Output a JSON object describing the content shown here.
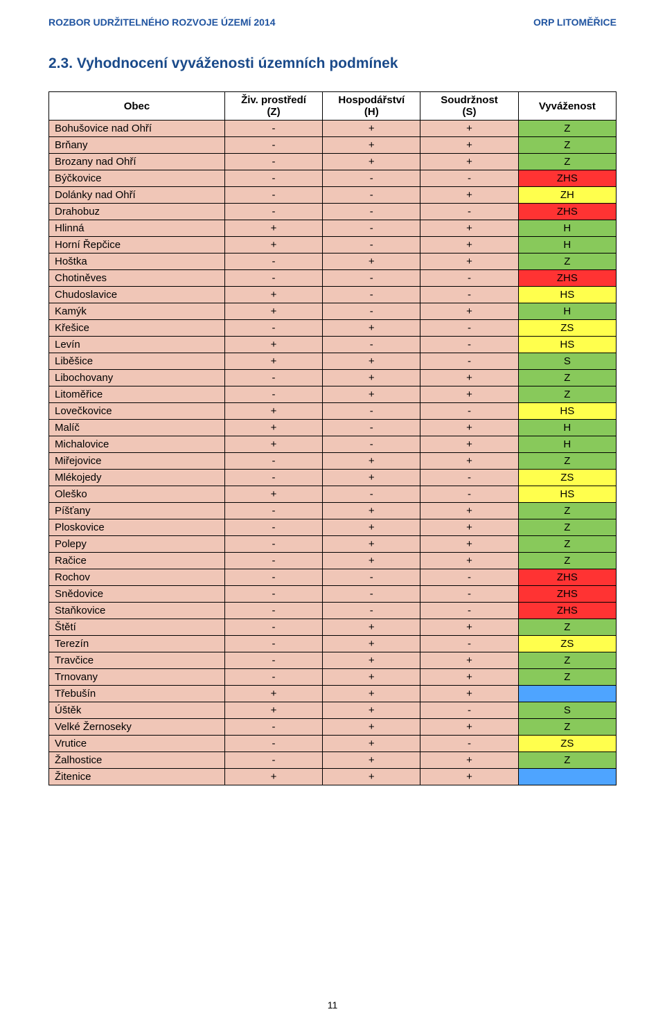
{
  "header": {
    "left": "ROZBOR UDRŽITELNÉHO ROZVOJE ÚZEMÍ 2014",
    "right": "ORP LITOMĚŘICE"
  },
  "section_title": "2.3.   Vyhodnocení vyváženosti územních podmínek",
  "page_number": "11",
  "colors": {
    "obec_bg": "#f0c6b7",
    "codes": {
      "Z": "#88c95b",
      "ZHS": "#ff3333",
      "ZH": "#ffff4d",
      "H": "#88c95b",
      "HS": "#ffff4d",
      "ZS": "#ffff4d",
      "S": "#88c95b",
      "": "#4ea4ff"
    }
  },
  "columns": [
    {
      "key": "obec",
      "label": "Obec",
      "class": "obec-head"
    },
    {
      "key": "z",
      "label": "Živ. prostředí\n(Z)",
      "class": "col-head"
    },
    {
      "key": "h",
      "label": "Hospodářství\n(H)",
      "class": "col-head"
    },
    {
      "key": "s",
      "label": "Soudržnost\n(S)",
      "class": "col-head"
    },
    {
      "key": "v",
      "label": "Vyváženost",
      "class": "col-head"
    }
  ],
  "rows": [
    {
      "obec": "Bohušovice nad Ohří",
      "z": "-",
      "h": "+",
      "s": "+",
      "v": "Z"
    },
    {
      "obec": "Brňany",
      "z": "-",
      "h": "+",
      "s": "+",
      "v": "Z"
    },
    {
      "obec": "Brozany nad Ohří",
      "z": "-",
      "h": "+",
      "s": "+",
      "v": "Z"
    },
    {
      "obec": "Býčkovice",
      "z": "-",
      "h": "-",
      "s": "-",
      "v": "ZHS"
    },
    {
      "obec": "Dolánky nad Ohří",
      "z": "-",
      "h": "-",
      "s": "+",
      "v": "ZH"
    },
    {
      "obec": "Drahobuz",
      "z": "-",
      "h": "-",
      "s": "-",
      "v": "ZHS"
    },
    {
      "obec": "Hlinná",
      "z": "+",
      "h": "-",
      "s": "+",
      "v": "H"
    },
    {
      "obec": "Horní Řepčice",
      "z": "+",
      "h": "-",
      "s": "+",
      "v": "H"
    },
    {
      "obec": "Hoštka",
      "z": "-",
      "h": "+",
      "s": "+",
      "v": "Z"
    },
    {
      "obec": "Chotiněves",
      "z": "-",
      "h": "-",
      "s": "-",
      "v": "ZHS"
    },
    {
      "obec": "Chudoslavice",
      "z": "+",
      "h": "-",
      "s": "-",
      "v": "HS"
    },
    {
      "obec": "Kamýk",
      "z": "+",
      "h": "-",
      "s": "+",
      "v": "H"
    },
    {
      "obec": "Křešice",
      "z": "-",
      "h": "+",
      "s": "-",
      "v": "ZS"
    },
    {
      "obec": "Levín",
      "z": "+",
      "h": "-",
      "s": "-",
      "v": "HS"
    },
    {
      "obec": "Liběšice",
      "z": "+",
      "h": "+",
      "s": "-",
      "v": "S"
    },
    {
      "obec": "Libochovany",
      "z": "-",
      "h": "+",
      "s": "+",
      "v": "Z"
    },
    {
      "obec": "Litoměřice",
      "z": "-",
      "h": "+",
      "s": "+",
      "v": "Z"
    },
    {
      "obec": "Lovečkovice",
      "z": "+",
      "h": "-",
      "s": "-",
      "v": "HS"
    },
    {
      "obec": "Malíč",
      "z": "+",
      "h": "-",
      "s": "+",
      "v": "H"
    },
    {
      "obec": "Michalovice",
      "z": "+",
      "h": "-",
      "s": "+",
      "v": "H"
    },
    {
      "obec": "Miřejovice",
      "z": "-",
      "h": "+",
      "s": "+",
      "v": "Z"
    },
    {
      "obec": "Mlékojedy",
      "z": "-",
      "h": "+",
      "s": "-",
      "v": "ZS"
    },
    {
      "obec": "Oleško",
      "z": "+",
      "h": "-",
      "s": "-",
      "v": "HS"
    },
    {
      "obec": "Píšťany",
      "z": "-",
      "h": "+",
      "s": "+",
      "v": "Z"
    },
    {
      "obec": "Ploskovice",
      "z": "-",
      "h": "+",
      "s": "+",
      "v": "Z"
    },
    {
      "obec": "Polepy",
      "z": "-",
      "h": "+",
      "s": "+",
      "v": "Z"
    },
    {
      "obec": "Račice",
      "z": "-",
      "h": "+",
      "s": "+",
      "v": "Z"
    },
    {
      "obec": "Rochov",
      "z": "-",
      "h": "-",
      "s": "-",
      "v": "ZHS"
    },
    {
      "obec": "Snědovice",
      "z": "-",
      "h": "-",
      "s": "-",
      "v": "ZHS"
    },
    {
      "obec": "Staňkovice",
      "z": "-",
      "h": "-",
      "s": "-",
      "v": "ZHS"
    },
    {
      "obec": "Štětí",
      "z": "-",
      "h": "+",
      "s": "+",
      "v": "Z"
    },
    {
      "obec": "Terezín",
      "z": "-",
      "h": "+",
      "s": "-",
      "v": "ZS"
    },
    {
      "obec": "Travčice",
      "z": "-",
      "h": "+",
      "s": "+",
      "v": "Z"
    },
    {
      "obec": "Trnovany",
      "z": "-",
      "h": "+",
      "s": "+",
      "v": "Z"
    },
    {
      "obec": "Třebušín",
      "z": "+",
      "h": "+",
      "s": "+",
      "v": ""
    },
    {
      "obec": "Úštěk",
      "z": "+",
      "h": "+",
      "s": "-",
      "v": "S"
    },
    {
      "obec": "Velké Žernoseky",
      "z": "-",
      "h": "+",
      "s": "+",
      "v": "Z"
    },
    {
      "obec": "Vrutice",
      "z": "-",
      "h": "+",
      "s": "-",
      "v": "ZS"
    },
    {
      "obec": "Žalhostice",
      "z": "-",
      "h": "+",
      "s": "+",
      "v": "Z"
    },
    {
      "obec": "Žitenice",
      "z": "+",
      "h": "+",
      "s": "+",
      "v": ""
    }
  ]
}
